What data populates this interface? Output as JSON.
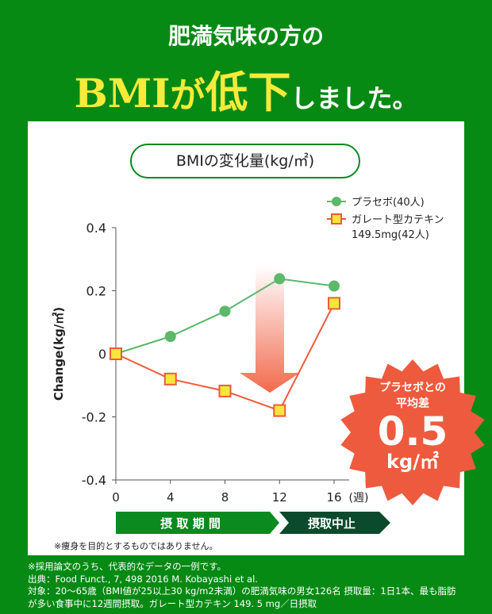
{
  "header": {
    "line1": "肥満気味の方の",
    "line2_bmi": "BMI",
    "line2_ga": "が",
    "line2_teika": "低下",
    "line2_rest": "しました。"
  },
  "chart_title": "BMIの変化量(kg/㎡)",
  "badge": {
    "line1": "プラセボとの",
    "line2": "平均差",
    "value": "0.5",
    "unit": "kg/㎡"
  },
  "periods": {
    "intake": "摂 取 期 間",
    "stop": "摂取中止"
  },
  "note": "※痩身を目的とするものではありません。",
  "footer": [
    "※採用論文のうち、代表的なデータの一例です。",
    "出典：Food Funct., 7, 498 2016 M. Kobayashi et al.",
    "対象：20〜65歳（BMI値が25以上30 kg/m2未満）の肥満気味の男女126名 摂取量：1日1本、最も脂肪",
    "が多い食事中に12週間摂取。ガレート型カテキン 149. 5 mg／日摂取"
  ],
  "chart_data": {
    "type": "line",
    "ylabel": "Change(kg/㎡)",
    "xunit": "(週)",
    "x": [
      0,
      4,
      8,
      12,
      16
    ],
    "xticks": [
      "0",
      "4",
      "8",
      "12",
      "16"
    ],
    "yticks": [
      "0.4",
      "0.2",
      "0",
      "-0.2",
      "-0.4"
    ],
    "ylim": [
      -0.4,
      0.4
    ],
    "legend_position": "top-right",
    "series": [
      {
        "name": "プラセボ(40人)",
        "values": [
          0,
          0.055,
          0.135,
          0.238,
          0.215
        ],
        "color": "#5cb86a",
        "marker": "circle"
      },
      {
        "name": "ガレート型カテキン",
        "name2": "149.5mg(42人)",
        "values": [
          0,
          -0.08,
          -0.118,
          -0.18,
          0.16
        ],
        "color": "#f05a3a",
        "marker": "square",
        "fill": "#f8e63a"
      }
    ]
  }
}
